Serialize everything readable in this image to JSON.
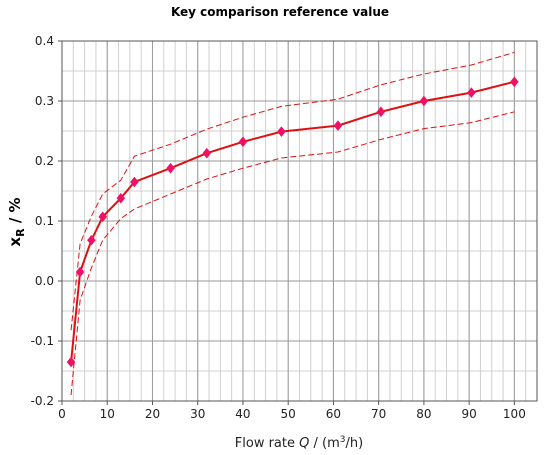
{
  "chart_data": {
    "type": "line",
    "title": "Key comparison reference value",
    "xlabel": {
      "prefix": "Flow rate ",
      "var": "Q",
      "mid": " / (m",
      "sup": "3",
      "suffix": "/h)"
    },
    "ylabel": {
      "var": "x",
      "sub": "R",
      "suffix": " / %"
    },
    "xlim": [
      0,
      105
    ],
    "ylim": [
      -0.2,
      0.4
    ],
    "x_ticks": [
      "0",
      "10",
      "20",
      "30",
      "40",
      "50",
      "60",
      "70",
      "80",
      "90",
      "100"
    ],
    "y_ticks": [
      "-0.2",
      "-0.1",
      "0.0",
      "0.1",
      "0.2",
      "0.3",
      "0.4"
    ],
    "grid": true,
    "x_minor_step": 2.5,
    "y_minor_step": 0.05,
    "x": [
      2,
      4,
      6.5,
      9,
      13,
      16,
      24,
      32,
      40,
      48.5,
      61,
      70.5,
      80,
      90.5,
      100
    ],
    "series": [
      {
        "values": [
          -0.135,
          0.015,
          0.068,
          0.107,
          0.138,
          0.165,
          0.188,
          0.213,
          0.232,
          0.249,
          0.259,
          0.282,
          0.3,
          0.314,
          0.332
        ],
        "color": "#dd1111",
        "style": "solid",
        "marker": "diamond",
        "marker_color": "#ee1166"
      },
      {
        "values": [
          -0.082,
          0.062,
          0.108,
          0.145,
          0.168,
          0.208,
          0.228,
          0.253,
          0.273,
          0.291,
          0.303,
          0.327,
          0.345,
          0.36,
          0.381
        ],
        "color": "#dd1111",
        "style": "dashed"
      },
      {
        "values": [
          -0.19,
          -0.032,
          0.022,
          0.068,
          0.104,
          0.12,
          0.145,
          0.17,
          0.188,
          0.205,
          0.215,
          0.236,
          0.254,
          0.264,
          0.282
        ],
        "color": "#dd1111",
        "style": "dashed"
      }
    ]
  }
}
